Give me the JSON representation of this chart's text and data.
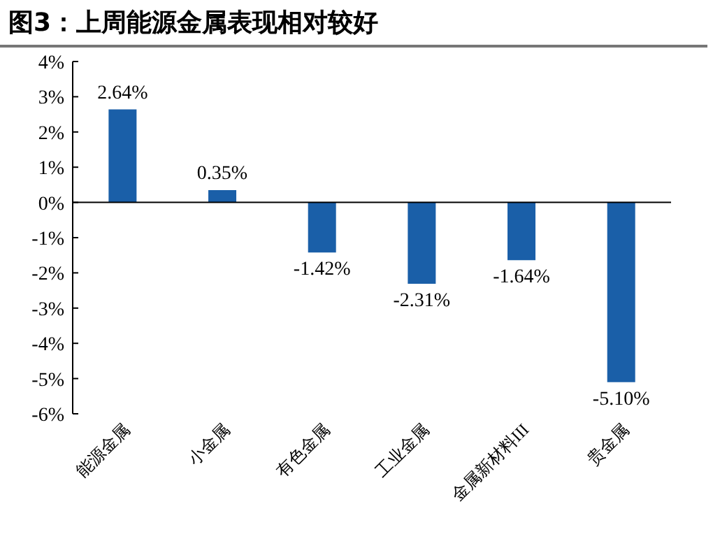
{
  "chart_data": {
    "type": "bar",
    "title": "图3：上周能源金属表现相对较好",
    "categories": [
      "能源金属",
      "小金属",
      "有色金属",
      "工业金属",
      "金属新材料III",
      "贵金属"
    ],
    "values": [
      2.64,
      0.35,
      -1.42,
      -2.31,
      -1.64,
      -5.1
    ],
    "value_labels": [
      "2.64%",
      "0.35%",
      "-1.42%",
      "-2.31%",
      "-1.64%",
      "-5.10%"
    ],
    "color": "#1a5fa8",
    "ylim": [
      -6,
      4
    ],
    "yticks": [
      {
        "value": -6,
        "label": "-6%"
      },
      {
        "value": -5,
        "label": "-5%"
      },
      {
        "value": -4,
        "label": "-4%"
      },
      {
        "value": -3,
        "label": "-3%"
      },
      {
        "value": -2,
        "label": "-2%"
      },
      {
        "value": -1,
        "label": "-1%"
      },
      {
        "value": 0,
        "label": "0%"
      },
      {
        "value": 1,
        "label": "1%"
      },
      {
        "value": 2,
        "label": "2%"
      },
      {
        "value": 3,
        "label": "3%"
      },
      {
        "value": 4,
        "label": "4%"
      }
    ],
    "legend": false
  }
}
